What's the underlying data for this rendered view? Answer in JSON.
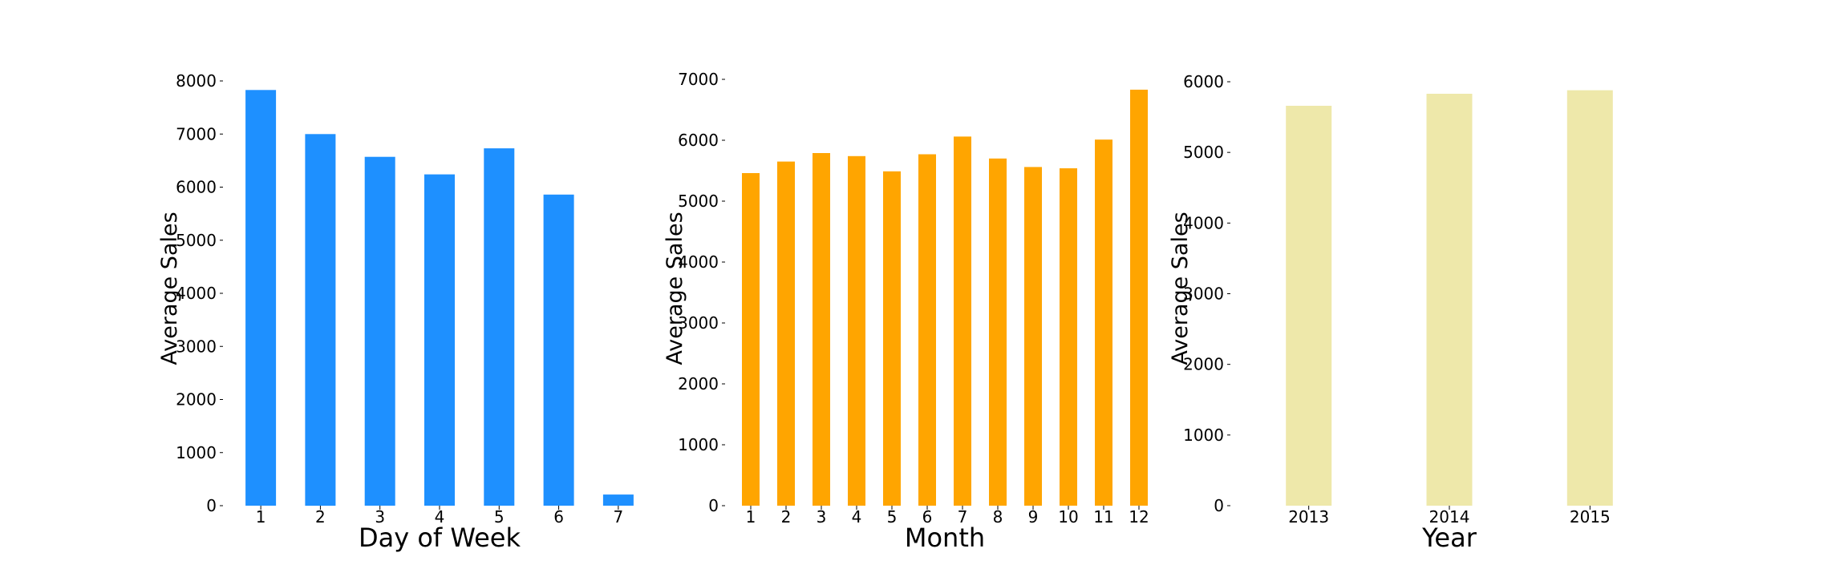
{
  "chart_data": [
    {
      "type": "bar",
      "categories": [
        "1",
        "2",
        "3",
        "4",
        "5",
        "6",
        "7"
      ],
      "values": [
        7830,
        7000,
        6570,
        6240,
        6730,
        5860,
        210
      ],
      "title": "",
      "xlabel": "Day of Week",
      "ylabel": "Average Sales",
      "ylim": [
        0,
        8000
      ],
      "yticks": [
        0,
        1000,
        2000,
        3000,
        4000,
        5000,
        6000,
        7000,
        8000
      ],
      "color": "#1e90ff",
      "grid": false
    },
    {
      "type": "bar",
      "categories": [
        "1",
        "2",
        "3",
        "4",
        "5",
        "6",
        "7",
        "8",
        "9",
        "10",
        "11",
        "12"
      ],
      "values": [
        5460,
        5650,
        5790,
        5740,
        5490,
        5770,
        6060,
        5700,
        5560,
        5540,
        6010,
        6830
      ],
      "title": "",
      "xlabel": "Month",
      "ylabel": "Average Sales",
      "ylim": [
        0,
        7000
      ],
      "yticks": [
        0,
        1000,
        2000,
        3000,
        4000,
        5000,
        6000,
        7000
      ],
      "color": "#ffa500",
      "grid": false
    },
    {
      "type": "bar",
      "categories": [
        "2013",
        "2014",
        "2015"
      ],
      "values": [
        5660,
        5830,
        5880
      ],
      "title": "",
      "xlabel": "Year",
      "ylabel": "Average Sales",
      "ylim": [
        0,
        6000
      ],
      "yticks": [
        0,
        1000,
        2000,
        3000,
        4000,
        5000,
        6000
      ],
      "color": "#eee8aa",
      "grid": false
    }
  ]
}
